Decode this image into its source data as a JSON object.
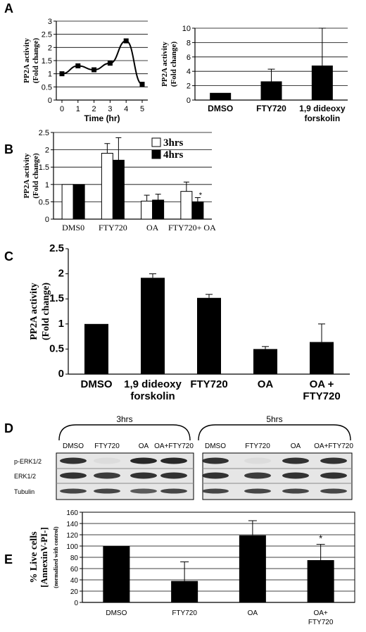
{
  "panels": {
    "A": "A",
    "B": "B",
    "C": "C",
    "D": "D",
    "E": "E"
  },
  "chart_data": [
    {
      "id": "A1",
      "type": "line",
      "x": [
        0,
        1,
        2,
        3,
        4,
        5
      ],
      "values": [
        1.0,
        1.3,
        1.15,
        1.4,
        2.25,
        0.6
      ],
      "xlabel": "Time (hr)",
      "ylabel_lines": [
        "PP2A activity",
        "(Fold change)"
      ],
      "ylim": [
        0,
        3
      ],
      "yticks": [
        "0",
        "0.5",
        "1",
        "1.5",
        "2",
        "2.5",
        "3"
      ],
      "xticks": [
        "0",
        "1",
        "2",
        "3",
        "4",
        "5"
      ],
      "grid": true,
      "color": "#000000"
    },
    {
      "id": "A2",
      "type": "bar",
      "categories": [
        "DMSO",
        "FTY720",
        "1,9 dideoxy forskolin"
      ],
      "category_lines": [
        [
          "DMSO"
        ],
        [
          "FTY720"
        ],
        [
          "1,9 dideoxy",
          "forskolin"
        ]
      ],
      "values": [
        1.0,
        2.6,
        4.8
      ],
      "errors": [
        0,
        1.7,
        5.2
      ],
      "ylabel_lines": [
        "PP2A activity",
        "(Fold change)"
      ],
      "ylim": [
        0,
        10
      ],
      "yticks": [
        "0",
        "2",
        "4",
        "6",
        "8",
        "10"
      ],
      "grid": true,
      "color": "#000000"
    },
    {
      "id": "B",
      "type": "bar",
      "categories": [
        "DMS0",
        "FTY720",
        "OA",
        "FTY720+ OA"
      ],
      "series": [
        {
          "name": "3hrs",
          "values": [
            1.0,
            1.9,
            0.52,
            0.8
          ],
          "errors": [
            0,
            0.28,
            0.17,
            0.27
          ],
          "color": "#ffffff"
        },
        {
          "name": "4hrs",
          "values": [
            1.0,
            1.7,
            0.55,
            0.5
          ],
          "errors": [
            0,
            0.65,
            0.17,
            0.12
          ],
          "color": "#000000"
        }
      ],
      "annotations": [
        "*"
      ],
      "ylabel_lines": [
        "PP2A activity",
        "(Fold change)"
      ],
      "ylim": [
        0,
        2.5
      ],
      "yticks": [
        "0",
        "0.5",
        "1",
        "1.5",
        "2",
        "2.5"
      ],
      "grid": true,
      "legend_position": "top-right"
    },
    {
      "id": "C",
      "type": "bar",
      "categories": [
        "DMSO",
        "1,9 dideoxy forskolin",
        "FTY720",
        "OA",
        "OA + FTY720"
      ],
      "category_lines": [
        [
          "DMSO"
        ],
        [
          "1,9 dideoxy",
          "forskolin"
        ],
        [
          "FTY720"
        ],
        [
          "OA"
        ],
        [
          "OA +",
          "FTY720"
        ]
      ],
      "values": [
        1.0,
        1.92,
        1.52,
        0.5,
        0.64
      ],
      "errors": [
        0,
        0.08,
        0.07,
        0.05,
        0.36
      ],
      "ylabel_lines": [
        "PP2A activity",
        "(Fold change)"
      ],
      "ylim": [
        0,
        2.5
      ],
      "yticks": [
        "0",
        "0.5",
        "1",
        "1.5",
        "2",
        "2.5"
      ],
      "grid": false,
      "color": "#000000"
    },
    {
      "id": "E",
      "type": "bar",
      "categories": [
        "DMSO",
        "FTY720",
        "OA",
        "OA+ FTY720"
      ],
      "category_lines": [
        [
          "DMSO"
        ],
        [
          "FTY720"
        ],
        [
          "OA"
        ],
        [
          "OA+",
          "FTY720"
        ]
      ],
      "values": [
        100,
        38,
        119,
        75
      ],
      "errors": [
        0,
        34,
        26,
        28
      ],
      "annotations": [
        "*"
      ],
      "ylabel_lines": [
        "% Live cells",
        "[AnnexinV-PI-]",
        "(normalized with control)"
      ],
      "ylim": [
        0,
        160
      ],
      "yticks": [
        "0",
        "20",
        "40",
        "60",
        "80",
        "100",
        "120",
        "140",
        "160"
      ],
      "grid": true,
      "color": "#000000"
    }
  ],
  "western_blot": {
    "time_labels": [
      "3hrs",
      "5hrs"
    ],
    "lane_labels": [
      "DMSO",
      "FTY720",
      "OA",
      "OA+FTY720",
      "DMSO",
      "FTY720",
      "OA",
      "OA+FTY720"
    ],
    "row_labels": [
      "p-ERK1/2",
      "ERK1/2",
      "Tubulin"
    ],
    "band_intensity": [
      [
        0.9,
        0.05,
        0.95,
        0.95,
        0.9,
        0.05,
        0.9,
        0.9
      ],
      [
        0.9,
        0.85,
        0.9,
        0.9,
        0.9,
        0.85,
        0.9,
        0.9
      ],
      [
        0.8,
        0.8,
        0.7,
        0.8,
        0.8,
        0.8,
        0.8,
        0.8
      ]
    ]
  }
}
